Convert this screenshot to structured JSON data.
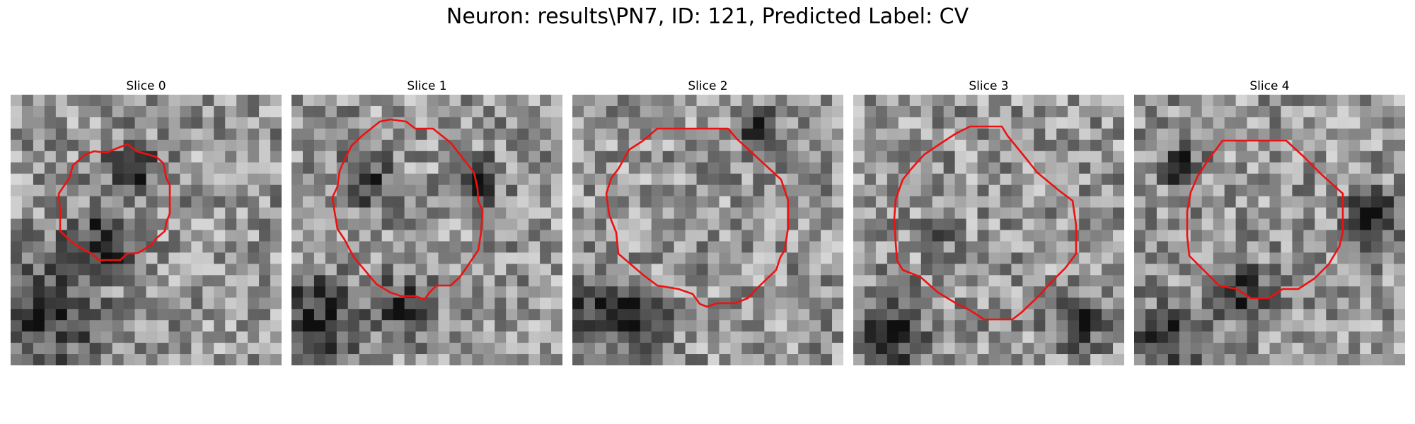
{
  "figure": {
    "title": "Neuron: results\\PN7, ID: 121, Predicted Label: CV",
    "contour_color": "#ee1111",
    "colormap": "grayscale"
  },
  "panels": [
    {
      "title": "Slice 0"
    },
    {
      "title": "Slice 1"
    },
    {
      "title": "Slice 2"
    },
    {
      "title": "Slice 3"
    },
    {
      "title": "Slice 4"
    }
  ]
}
